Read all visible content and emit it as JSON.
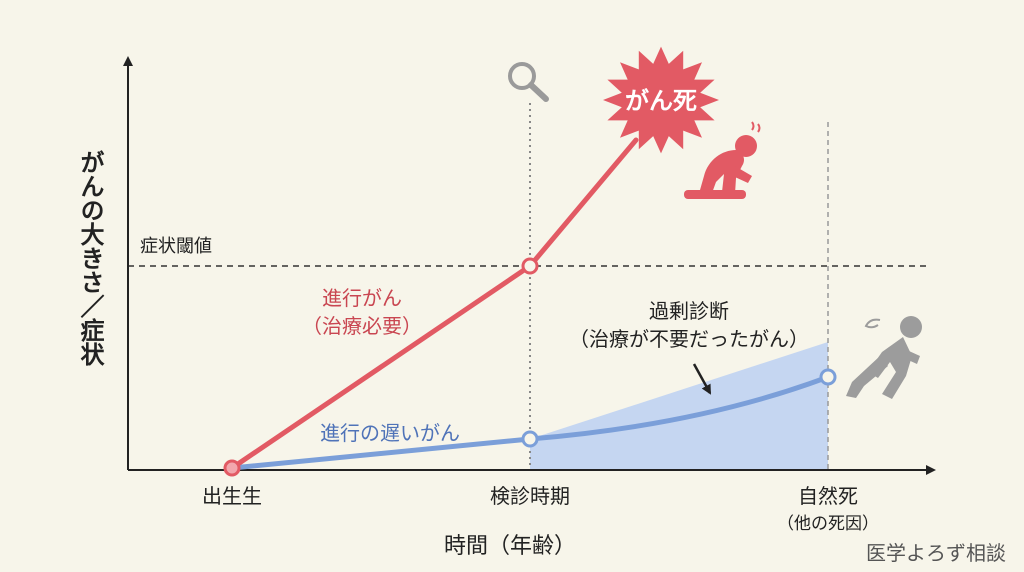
{
  "y_axis_label": "がんの大きさ／症状",
  "x_axis_label": "時間（年齢）",
  "threshold_label": "症状閾値",
  "x_ticks": {
    "birth": "出生生",
    "screening": "検診時期",
    "natural_death": "自然死",
    "natural_death_sub": "（他の死因）"
  },
  "progressive": {
    "line1": "進行がん",
    "line2": "（治療必要）",
    "death_burst": "がん死"
  },
  "slow": {
    "label": "進行の遅いがん"
  },
  "overdiagnosis": {
    "line1": "過剰診断",
    "line2": "（治療が不要だったがん）"
  },
  "watermark": "医学よろず相談",
  "icons": [
    "magnifier-icon",
    "suffering-person-icon",
    "lying-person-icon"
  ],
  "colors": {
    "progressive": "#e25a64",
    "slow": "#7b9fd9",
    "overdiagnosis_fill": "#bcd0f2",
    "axis": "#222222",
    "background": "#f7f5ea",
    "figure_gray": "#9c9c9c"
  }
}
